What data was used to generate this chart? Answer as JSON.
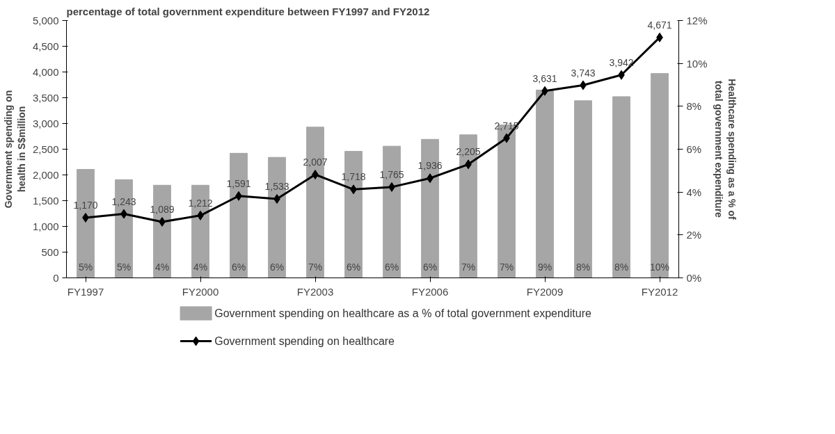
{
  "chart_data": {
    "type": "bar",
    "title": "percentage of total government expenditure between FY1997 and FY2012",
    "categories": [
      "FY1997",
      null,
      null,
      "FY2000",
      null,
      null,
      "FY2003",
      null,
      null,
      "FY2006",
      null,
      null,
      "FY2009",
      null,
      null,
      "FY2012"
    ],
    "series": [
      {
        "name": "Government spending on healthcare as a % of total government expenditure",
        "axis": "y2",
        "color": "#a6a6a6",
        "values": [
          5.06,
          4.58,
          4.32,
          4.32,
          5.81,
          5.62,
          7.03,
          5.9,
          6.14,
          6.46,
          6.67,
          7.13,
          8.76,
          8.26,
          8.45,
          9.53
        ],
        "value_labels": [
          "5%",
          "5%",
          "4%",
          "4%",
          "6%",
          "6%",
          "7%",
          "6%",
          "6%",
          "6%",
          "7%",
          "7%",
          "9%",
          "8%",
          "8%",
          "10%"
        ]
      },
      {
        "name": "Government spending on healthcare",
        "type": "line",
        "color": "#000000",
        "marker": "diamond",
        "values": [
          1170,
          1243,
          1089,
          1212,
          1591,
          1533,
          2007,
          1718,
          1765,
          1936,
          2205,
          2715,
          3631,
          3743,
          3942,
          4671
        ],
        "value_labels": [
          "1,170",
          "1,243",
          "1,089",
          "1,212",
          "1,591",
          "1,533",
          "2,007",
          "1,718",
          "1,765",
          "1,936",
          "2,205",
          "2,715",
          "3,631",
          "3,743",
          "3,942",
          "4,671"
        ]
      }
    ],
    "ylabel": "Government spending on health in S$million",
    "y2label": "Healthcare spending as a % of total government expenditure",
    "ylim": [
      0,
      5000
    ],
    "yticks": [
      {
        "value": 0,
        "label": "0"
      },
      {
        "value": 500,
        "label": "500"
      },
      {
        "value": 1000,
        "label": "1,000"
      },
      {
        "value": 1500,
        "label": "1,500"
      },
      {
        "value": 2000,
        "label": "2,000"
      },
      {
        "value": 2500,
        "label": "2,500"
      },
      {
        "value": 3000,
        "label": "3,000"
      },
      {
        "value": 3500,
        "label": "3,500"
      },
      {
        "value": 4000,
        "label": "4,000"
      },
      {
        "value": 4500,
        "label": "4,500"
      },
      {
        "value": 5000,
        "label": "5,000"
      }
    ],
    "y2lim": [
      0,
      12
    ],
    "y2ticks": [
      {
        "value": 0,
        "label": "0%"
      },
      {
        "value": 2,
        "label": "2%"
      },
      {
        "value": 4,
        "label": "4%"
      },
      {
        "value": 6,
        "label": "6%"
      },
      {
        "value": 8,
        "label": "8%"
      },
      {
        "value": 10,
        "label": "10%"
      },
      {
        "value": 12,
        "label": "12%"
      }
    ],
    "grid": false,
    "legend": "bottom"
  }
}
